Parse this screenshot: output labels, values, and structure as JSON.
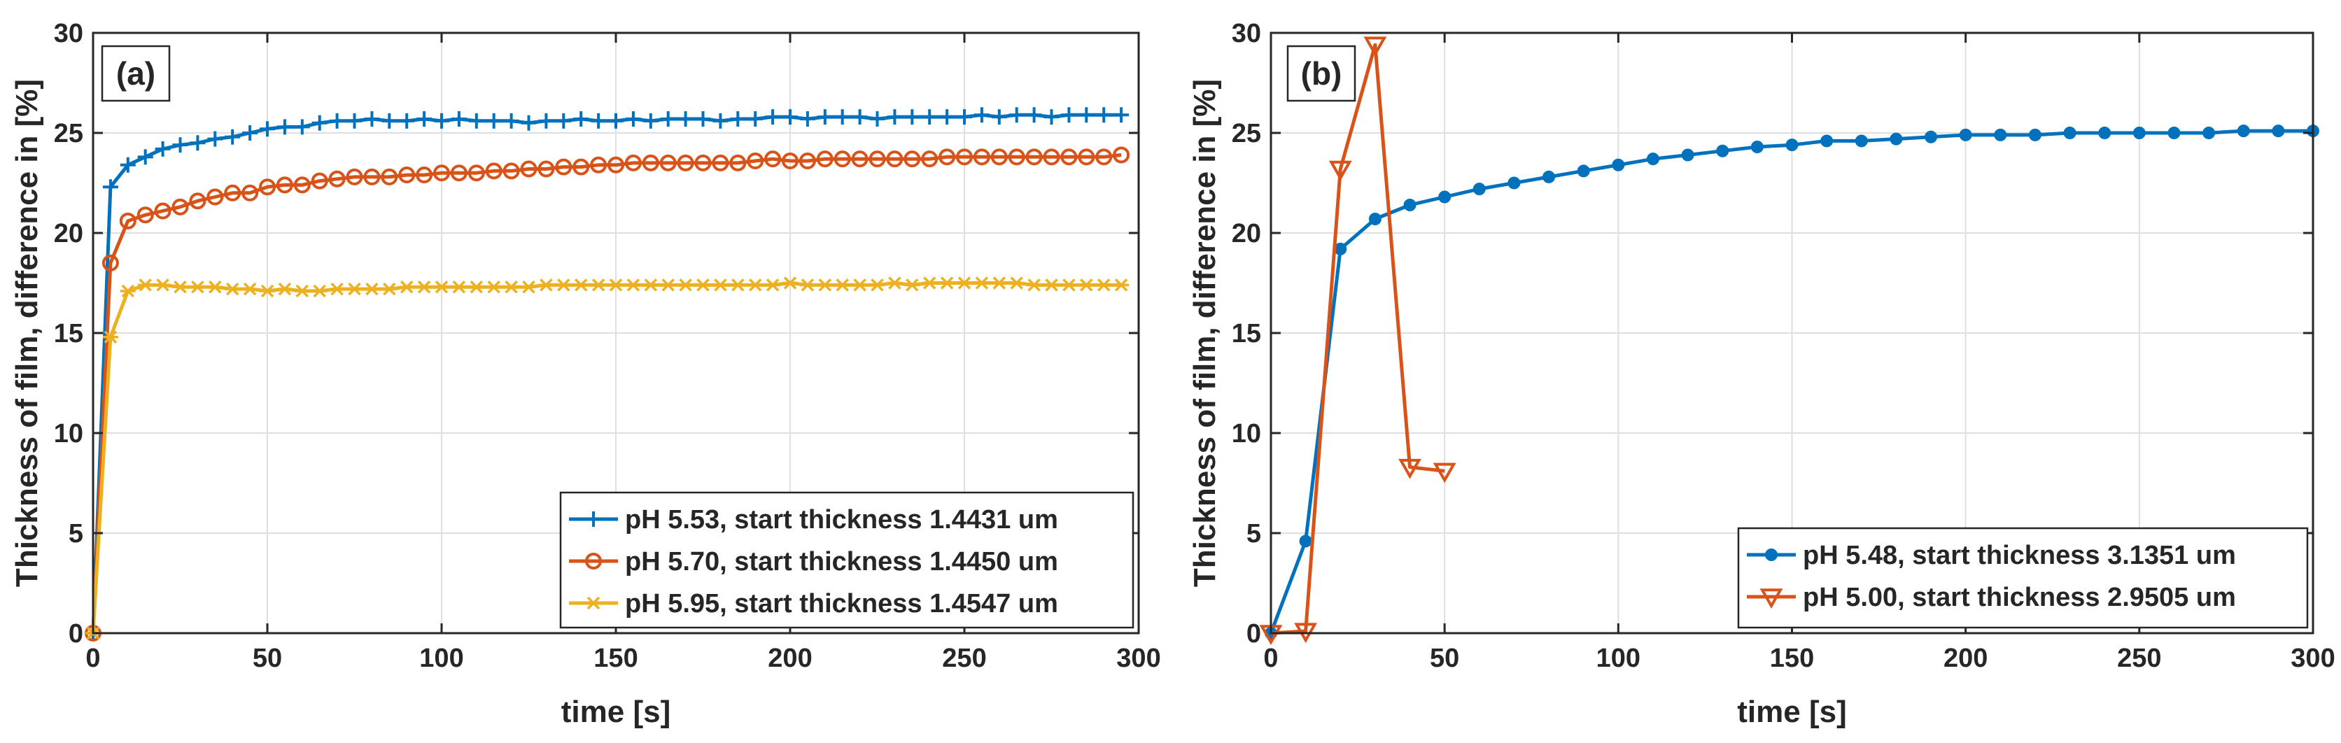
{
  "figure": {
    "colors": {
      "blue": "#0072BD",
      "orange": "#D95319",
      "yellow": "#EDB120",
      "grid": "#DFDFDF",
      "axis": "#262626"
    },
    "panels": [
      {
        "id": "a",
        "label": "(a)",
        "xlabel": "time [s]",
        "ylabel": "Thickness of film, difference in [%]",
        "legend_position": "bottom-right"
      },
      {
        "id": "b",
        "label": "(b)",
        "xlabel": "time [s]",
        "ylabel": "Thickness of film, difference in [%]",
        "legend_position": "bottom-right"
      }
    ]
  },
  "chart_data": [
    {
      "type": "line",
      "title": "(a)",
      "xlabel": "time [s]",
      "ylabel": "Thickness of film, difference in [%]",
      "xlim": [
        0,
        300
      ],
      "ylim": [
        0,
        30
      ],
      "xticks": [
        0,
        50,
        100,
        150,
        200,
        250,
        300
      ],
      "yticks": [
        0,
        5,
        10,
        15,
        20,
        25,
        30
      ],
      "grid": true,
      "legend_position": "bottom-right",
      "series": [
        {
          "name": "pH 5.53, start thickness 1.4431 um",
          "color": "#0072BD",
          "marker": "plus",
          "x": [
            0,
            5,
            10,
            15,
            20,
            25,
            30,
            35,
            40,
            45,
            50,
            55,
            60,
            65,
            70,
            75,
            80,
            85,
            90,
            95,
            100,
            105,
            110,
            115,
            120,
            125,
            130,
            135,
            140,
            145,
            150,
            155,
            160,
            165,
            170,
            175,
            180,
            185,
            190,
            195,
            200,
            205,
            210,
            215,
            220,
            225,
            230,
            235,
            240,
            245,
            250,
            255,
            260,
            265,
            270,
            275,
            280,
            285,
            290,
            295
          ],
          "y": [
            0,
            22.3,
            23.4,
            23.8,
            24.2,
            24.4,
            24.5,
            24.7,
            24.8,
            25.0,
            25.2,
            25.3,
            25.3,
            25.5,
            25.6,
            25.6,
            25.7,
            25.6,
            25.6,
            25.7,
            25.6,
            25.7,
            25.6,
            25.6,
            25.6,
            25.5,
            25.6,
            25.6,
            25.7,
            25.6,
            25.6,
            25.7,
            25.6,
            25.7,
            25.7,
            25.7,
            25.6,
            25.7,
            25.7,
            25.8,
            25.8,
            25.7,
            25.8,
            25.8,
            25.8,
            25.7,
            25.8,
            25.8,
            25.8,
            25.8,
            25.8,
            25.9,
            25.8,
            25.9,
            25.9,
            25.8,
            25.9,
            25.9,
            25.9,
            25.9
          ]
        },
        {
          "name": "pH 5.70, start thickness 1.4450 um",
          "color": "#D95319",
          "marker": "circle",
          "x": [
            0,
            5,
            10,
            15,
            20,
            25,
            30,
            35,
            40,
            45,
            50,
            55,
            60,
            65,
            70,
            75,
            80,
            85,
            90,
            95,
            100,
            105,
            110,
            115,
            120,
            125,
            130,
            135,
            140,
            145,
            150,
            155,
            160,
            165,
            170,
            175,
            180,
            185,
            190,
            195,
            200,
            205,
            210,
            215,
            220,
            225,
            230,
            235,
            240,
            245,
            250,
            255,
            260,
            265,
            270,
            275,
            280,
            285,
            290,
            295
          ],
          "y": [
            0,
            18.5,
            20.6,
            20.9,
            21.1,
            21.3,
            21.6,
            21.8,
            22.0,
            22.0,
            22.3,
            22.4,
            22.4,
            22.6,
            22.7,
            22.8,
            22.8,
            22.8,
            22.9,
            22.9,
            23.0,
            23.0,
            23.0,
            23.1,
            23.1,
            23.2,
            23.2,
            23.3,
            23.3,
            23.4,
            23.4,
            23.5,
            23.5,
            23.5,
            23.5,
            23.5,
            23.5,
            23.5,
            23.6,
            23.7,
            23.6,
            23.6,
            23.7,
            23.7,
            23.7,
            23.7,
            23.7,
            23.7,
            23.7,
            23.8,
            23.8,
            23.8,
            23.8,
            23.8,
            23.8,
            23.8,
            23.8,
            23.8,
            23.8,
            23.9
          ]
        },
        {
          "name": "pH 5.95, start thickness 1.4547 um",
          "color": "#EDB120",
          "marker": "star",
          "x": [
            0,
            5,
            10,
            15,
            20,
            25,
            30,
            35,
            40,
            45,
            50,
            55,
            60,
            65,
            70,
            75,
            80,
            85,
            90,
            95,
            100,
            105,
            110,
            115,
            120,
            125,
            130,
            135,
            140,
            145,
            150,
            155,
            160,
            165,
            170,
            175,
            180,
            185,
            190,
            195,
            200,
            205,
            210,
            215,
            220,
            225,
            230,
            235,
            240,
            245,
            250,
            255,
            260,
            265,
            270,
            275,
            280,
            285,
            290,
            295
          ],
          "y": [
            0,
            14.8,
            17.1,
            17.4,
            17.4,
            17.3,
            17.3,
            17.3,
            17.2,
            17.2,
            17.1,
            17.2,
            17.1,
            17.1,
            17.2,
            17.2,
            17.2,
            17.2,
            17.3,
            17.3,
            17.3,
            17.3,
            17.3,
            17.3,
            17.3,
            17.3,
            17.4,
            17.4,
            17.4,
            17.4,
            17.4,
            17.4,
            17.4,
            17.4,
            17.4,
            17.4,
            17.4,
            17.4,
            17.4,
            17.4,
            17.5,
            17.4,
            17.4,
            17.4,
            17.4,
            17.4,
            17.5,
            17.4,
            17.5,
            17.5,
            17.5,
            17.5,
            17.5,
            17.5,
            17.4,
            17.4,
            17.4,
            17.4,
            17.4,
            17.4
          ]
        }
      ]
    },
    {
      "type": "line",
      "title": "(b)",
      "xlabel": "time [s]",
      "ylabel": "Thickness of film, difference in [%]",
      "xlim": [
        0,
        300
      ],
      "ylim": [
        0,
        30
      ],
      "xticks": [
        0,
        50,
        100,
        150,
        200,
        250,
        300
      ],
      "yticks": [
        0,
        5,
        10,
        15,
        20,
        25,
        30
      ],
      "grid": true,
      "legend_position": "bottom-right",
      "series": [
        {
          "name": "pH 5.48, start thickness 3.1351 um",
          "color": "#0072BD",
          "marker": "dot",
          "x": [
            0,
            10,
            20,
            30,
            40,
            50,
            60,
            70,
            80,
            90,
            100,
            110,
            120,
            130,
            140,
            150,
            160,
            170,
            180,
            190,
            200,
            210,
            220,
            230,
            240,
            250,
            260,
            270,
            280,
            290,
            300
          ],
          "y": [
            0,
            4.6,
            19.2,
            20.7,
            21.4,
            21.8,
            22.2,
            22.5,
            22.8,
            23.1,
            23.4,
            23.7,
            23.9,
            24.1,
            24.3,
            24.4,
            24.6,
            24.6,
            24.7,
            24.8,
            24.9,
            24.9,
            24.9,
            25.0,
            25.0,
            25.0,
            25.0,
            25.0,
            25.1,
            25.1,
            25.1
          ]
        },
        {
          "name": "pH 5.00, start thickness 2.9505 um",
          "color": "#D95319",
          "marker": "triangle-down",
          "x": [
            0,
            10,
            20,
            30,
            40,
            50
          ],
          "y": [
            0,
            0.1,
            23.2,
            29.4,
            8.3,
            8.1
          ]
        }
      ]
    }
  ]
}
